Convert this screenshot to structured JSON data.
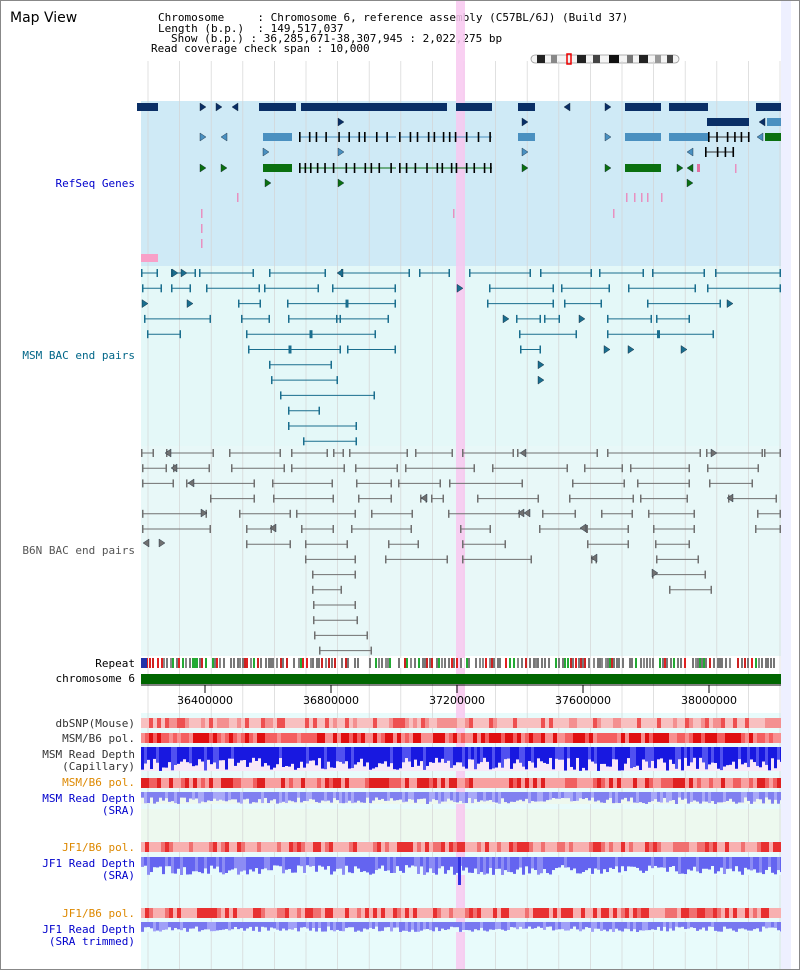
{
  "view_title": "Map View",
  "info": {
    "chromosome_label": "Chromosome",
    "chromosome_value": "Chromosome 6, reference assembly (C57BL/6J) (Build 37)",
    "length_label": "Length (b.p.)",
    "length_value": "149,517,037",
    "show_label": "Show (b.p.)",
    "show_value": "36,285,671-38,307,945 : 2,022,275 bp",
    "span_label": "Read coverage check span",
    "span_value": "10,000"
  },
  "tracks": {
    "refseq": "RefSeq Genes",
    "msm_bac": "MSM BAC end pairs",
    "b6n_bac": "B6N BAC end pairs",
    "repeat": "Repeat",
    "chromosome": "chromosome 6",
    "dbsnp": "dbSNP(Mouse)",
    "msm_b6_pol_1": "MSM/B6 pol.",
    "msm_depth_cap_1": "MSM Read Depth",
    "msm_depth_cap_2": "(Capillary)",
    "msm_b6_pol_2": "MSM/B6 pol.",
    "msm_depth_sra_1": "MSM Read Depth",
    "msm_depth_sra_2": "(SRA)",
    "jf1_b6_pol_1": "JF1/B6 pol.",
    "jf1_depth_sra_1": "JF1 Read Depth",
    "jf1_depth_sra_2": "(SRA)",
    "jf1_b6_pol_2": "JF1/B6 pol.",
    "jf1_depth_trim_1": "JF1 Read Depth",
    "jf1_depth_trim_2": "(SRA trimmed)"
  },
  "axis": {
    "ticks": [
      "36400000",
      "36800000",
      "37200000",
      "37600000",
      "38000000"
    ]
  },
  "colors": {
    "refseq_bg": "#cfeaf6",
    "msm_bg": "#e4f8f8",
    "b6n_bg": "#e8f8f8",
    "gene_navy": "#0a2f66",
    "gene_blue": "#4a90c0",
    "gene_green": "#0a7010",
    "msm_pair": "#1a6e8e",
    "b6n_pair": "#707070",
    "chrom_green": "#006600",
    "highlight": "#f8c8f0",
    "label_blue": "#0000cc",
    "label_teal": "#006688",
    "label_orange": "#dd8800"
  }
}
